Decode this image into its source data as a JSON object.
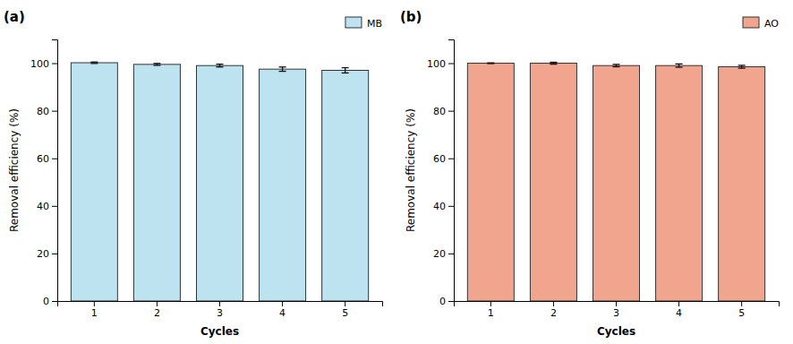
{
  "chart_data": [
    {
      "type": "bar",
      "title": "(a)",
      "xlabel": "Cycles",
      "ylabel": "Removal efficiency (%)",
      "categories": [
        "1",
        "2",
        "3",
        "4",
        "5"
      ],
      "series": [
        {
          "name": "MB",
          "color": "#BEE3F0",
          "values": [
            100.2,
            99.5,
            99.0,
            97.5,
            97.0
          ],
          "errors": [
            0.3,
            0.4,
            0.6,
            0.9,
            1.1
          ]
        }
      ],
      "ylim": [
        0,
        110
      ],
      "yticks": [
        0,
        20,
        40,
        60,
        80,
        100
      ],
      "grid": false,
      "legend": "upper right"
    },
    {
      "type": "bar",
      "title": "(b)",
      "xlabel": "Cycles",
      "ylabel": "Removal efficiency (%)",
      "categories": [
        "1",
        "2",
        "3",
        "4",
        "5"
      ],
      "series": [
        {
          "name": "AO",
          "color": "#F2A58E",
          "values": [
            100.0,
            100.0,
            99.0,
            99.0,
            98.5
          ],
          "errors": [
            0.15,
            0.4,
            0.5,
            0.7,
            0.6
          ]
        }
      ],
      "ylim": [
        0,
        110
      ],
      "yticks": [
        0,
        20,
        40,
        60,
        80,
        100
      ],
      "grid": false,
      "legend": "upper right"
    }
  ]
}
